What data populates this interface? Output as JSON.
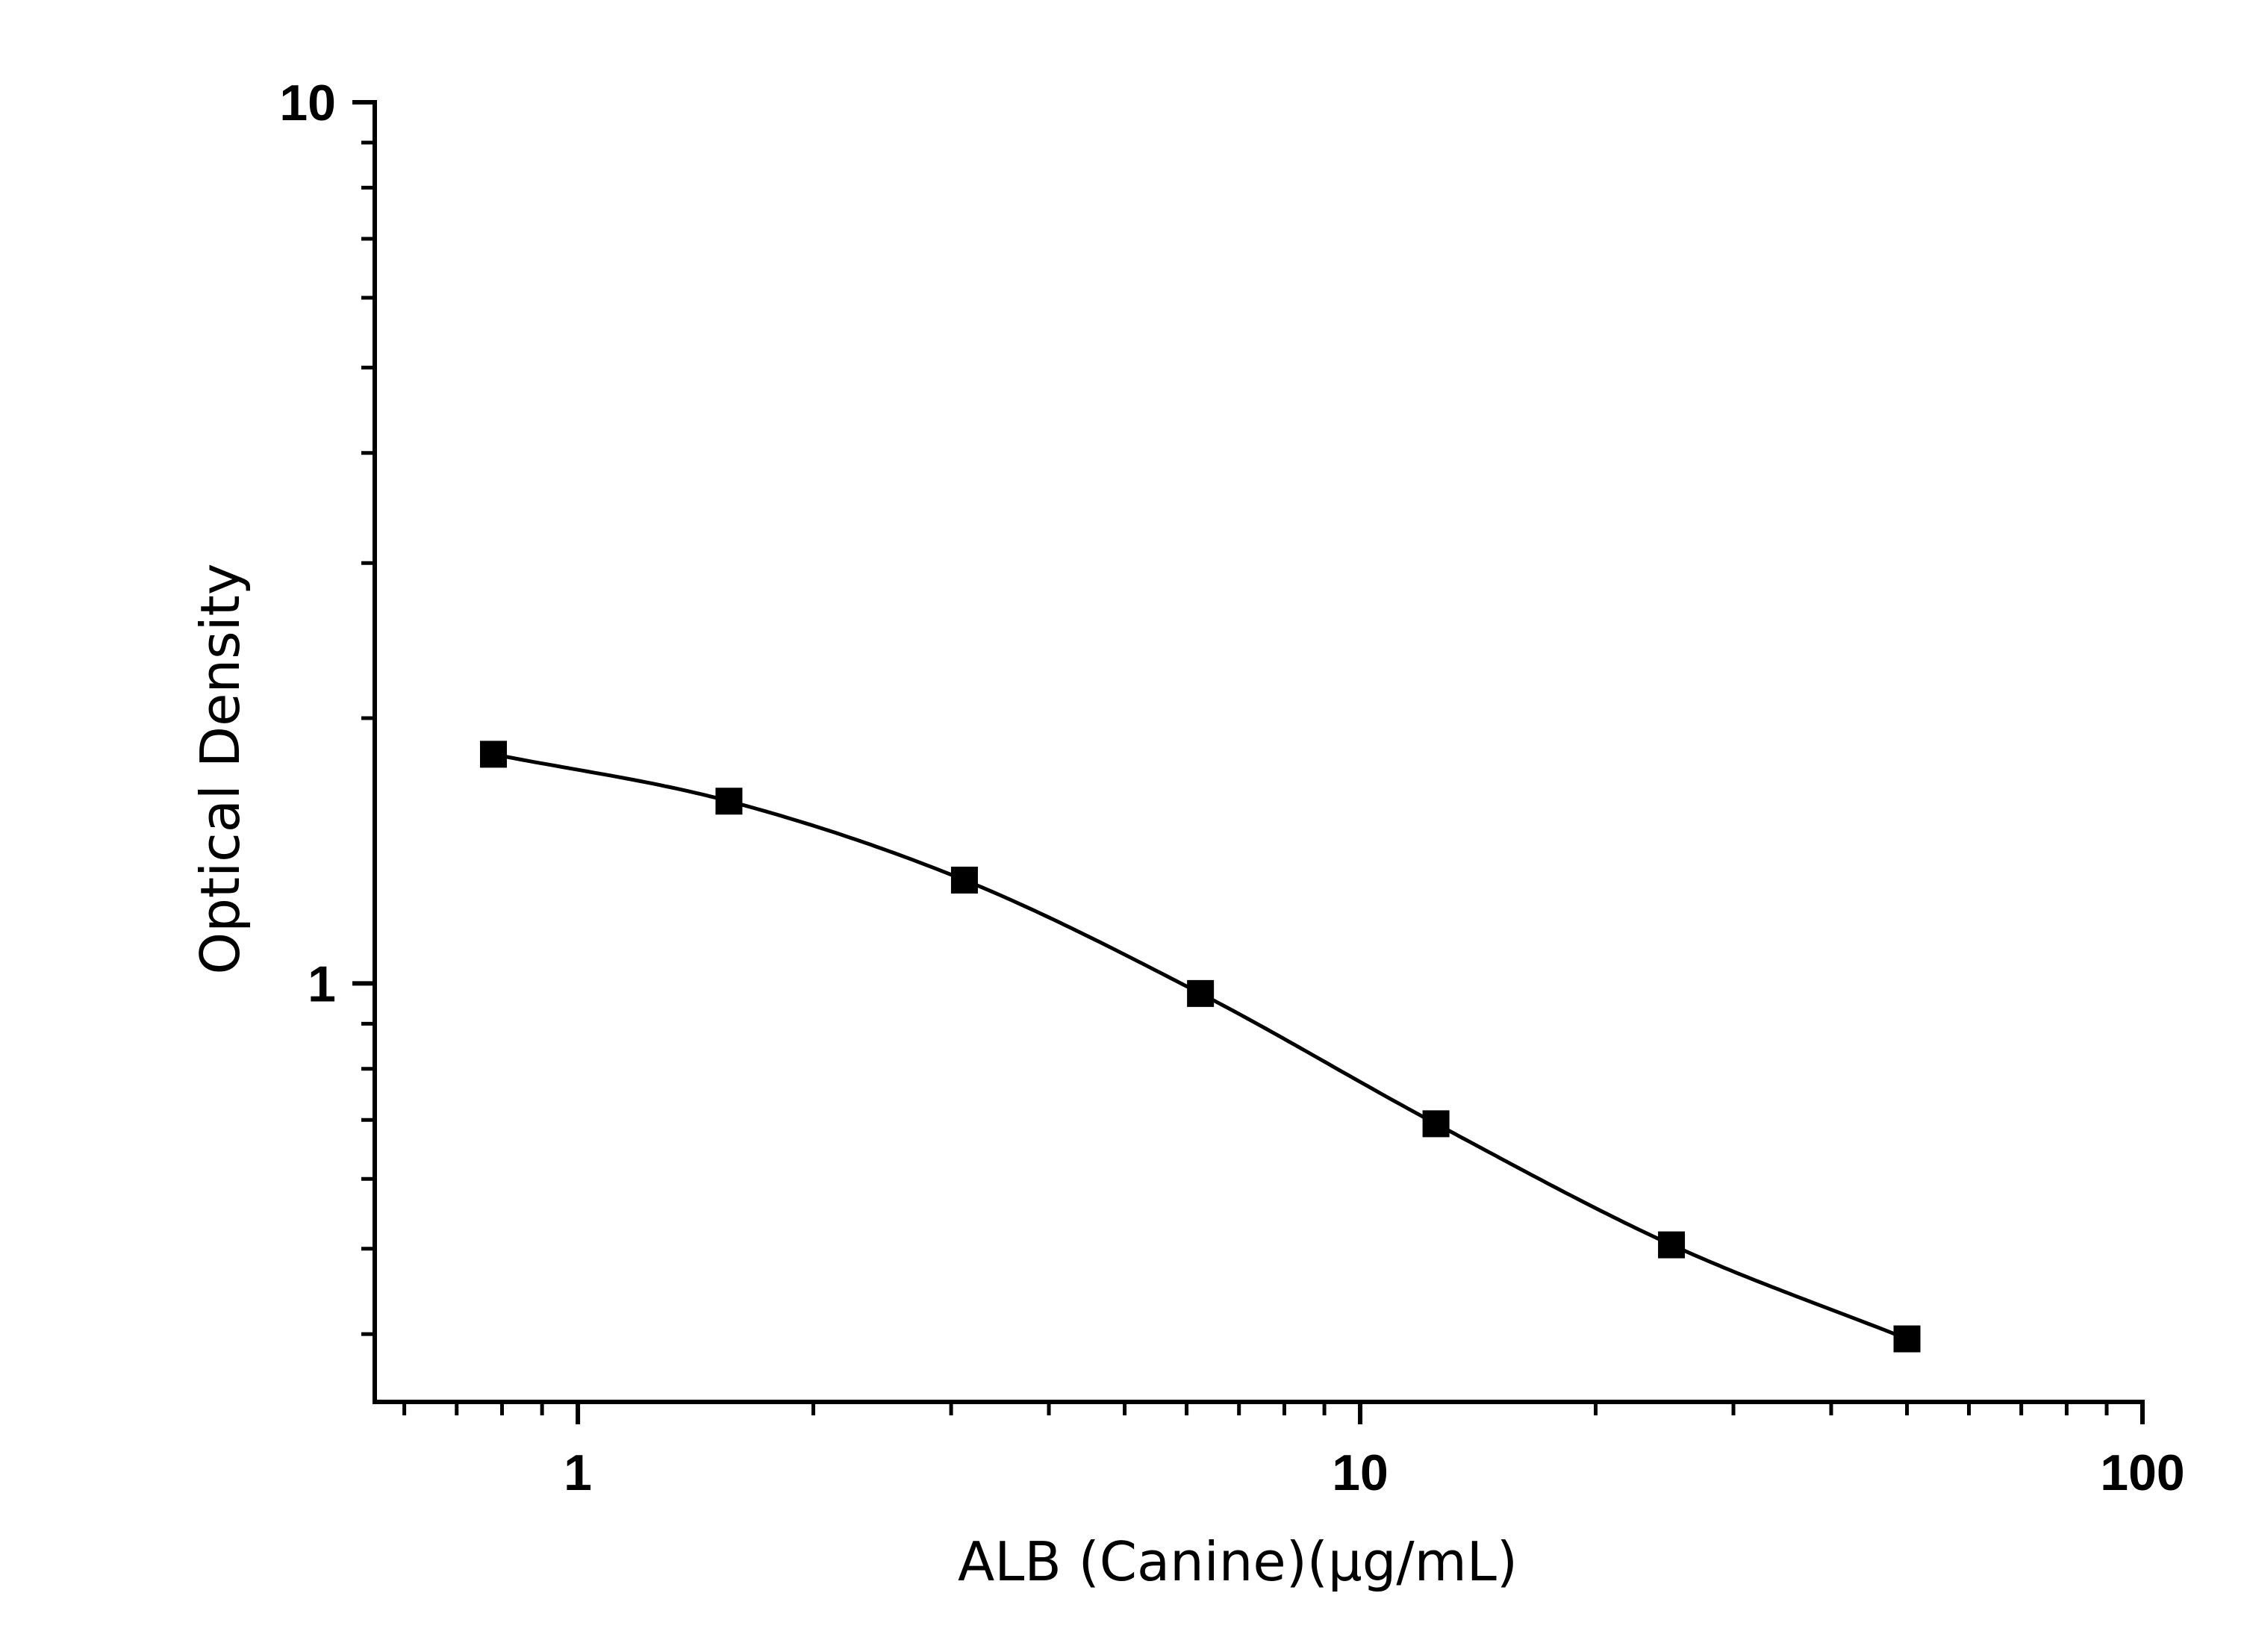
{
  "chart_data": {
    "type": "scatter",
    "title": "",
    "xlabel": "ALB (Canine)(μg/mL)",
    "ylabel": "Optical Density",
    "x_scale": "log",
    "y_scale": "log",
    "xlim": [
      0.55,
      100
    ],
    "ylim": [
      0.335,
      10
    ],
    "x_ticks": [
      "1",
      "10",
      "100"
    ],
    "y_ticks": [
      "10",
      "1"
    ],
    "grid": false,
    "legend": "none",
    "marker": "square",
    "color": "#000000",
    "series": [
      {
        "x": [
          0.78,
          1.56,
          3.12,
          6.25,
          12.5,
          25,
          50
        ],
        "y": [
          1.82,
          1.61,
          1.31,
          0.974,
          0.693,
          0.505,
          0.395
        ]
      }
    ],
    "fit_curve": true
  }
}
